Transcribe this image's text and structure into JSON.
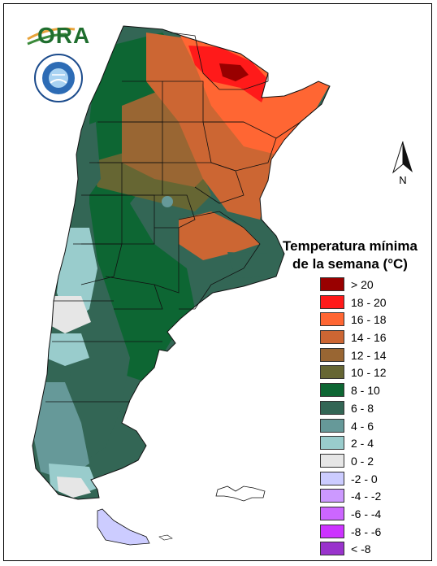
{
  "logo": {
    "text": "ORA",
    "seal_text": "SERVICIO METEOROLOGICO NACIONAL ARGENTINA"
  },
  "north_arrow": {
    "label": "N"
  },
  "legend": {
    "title_line1": "Temperatura mínima",
    "title_line2": "de la semana (°C)",
    "items": [
      {
        "label": "> 20",
        "color": "#990000"
      },
      {
        "label": "18 - 20",
        "color": "#ff1a1a"
      },
      {
        "label": "16 - 18",
        "color": "#ff6633"
      },
      {
        "label": "14 - 16",
        "color": "#cc6633"
      },
      {
        "label": "12 - 14",
        "color": "#996633"
      },
      {
        "label": "10 - 12",
        "color": "#666633"
      },
      {
        "label": "8 - 10",
        "color": "#0d6633"
      },
      {
        "label": "6 - 8",
        "color": "#336655"
      },
      {
        "label": "4 - 6",
        "color": "#669999"
      },
      {
        "label": "2 - 4",
        "color": "#99cccc"
      },
      {
        "label": "0 - 2",
        "color": "#e6e6e6"
      },
      {
        "label": "-2 - 0",
        "color": "#ccccff"
      },
      {
        "label": "-4 - -2",
        "color": "#cc99ff"
      },
      {
        "label": "-6 - -4",
        "color": "#cc66ff"
      },
      {
        "label": "-8 - -6",
        "color": "#cc33ff"
      },
      {
        "label": "< -8",
        "color": "#9933cc"
      }
    ]
  }
}
